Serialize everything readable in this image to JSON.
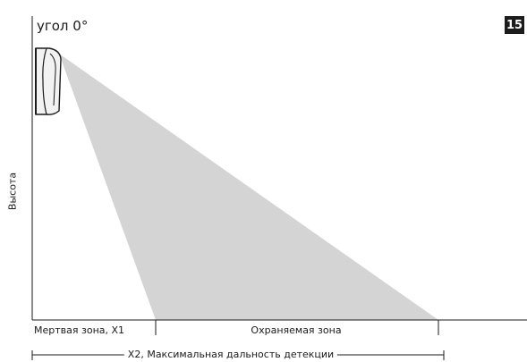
{
  "figure": {
    "badge": "15",
    "angle_label": "угол 0°",
    "y_axis_label": "Высота",
    "dead_zone_label": "Мертвая зона, X1",
    "protected_zone_label": "Охраняемая зона",
    "max_range_label": "X2, Максимальная дальность детекции"
  },
  "colors": {
    "beam": "#d4d4d4",
    "line": "#1a1a1a",
    "sensor_fill": "#f2f2f2",
    "badge_bg": "#1c1c1c"
  },
  "icons": {
    "sensor": "motion-sensor-icon"
  }
}
